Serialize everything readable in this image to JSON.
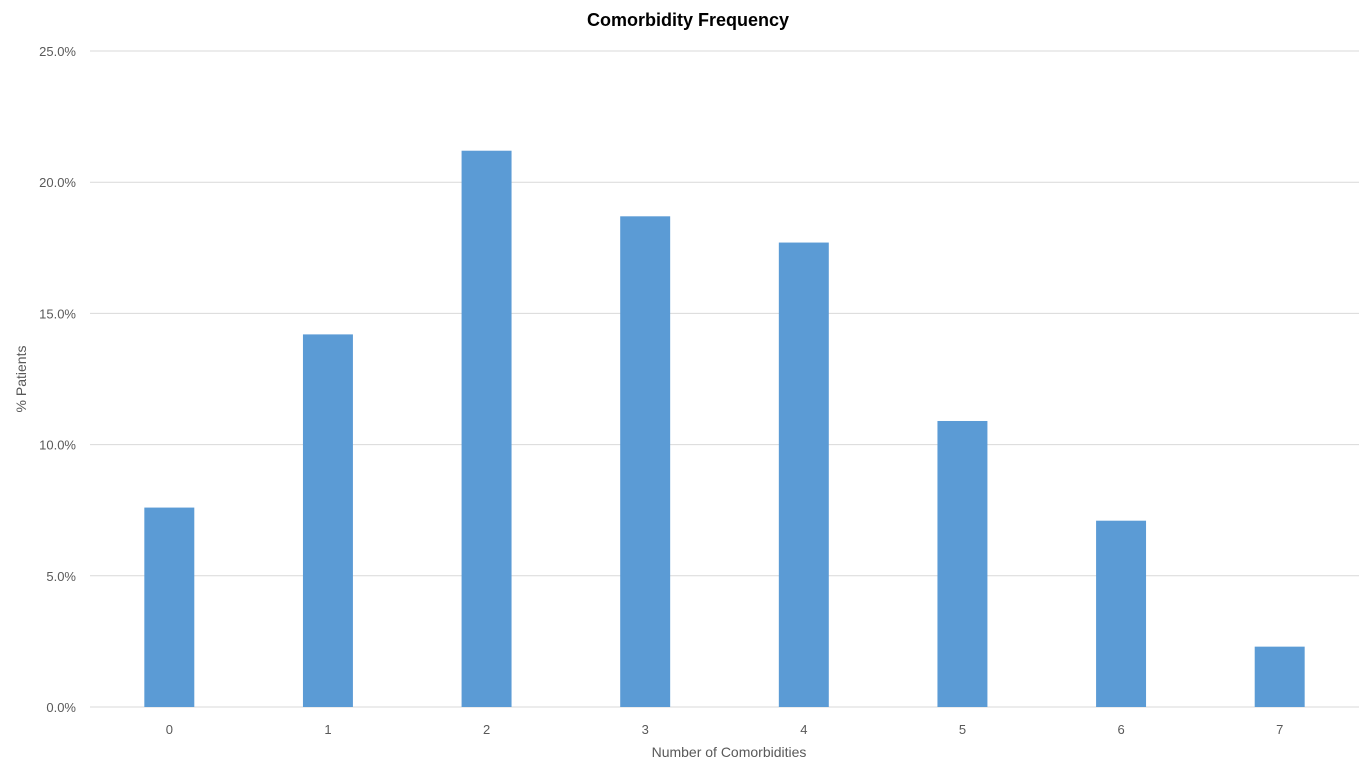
{
  "chart_data": {
    "type": "bar",
    "title": "Comorbidity Frequency",
    "xlabel": "Number of Comorbidities",
    "ylabel": "% Patients",
    "categories": [
      "0",
      "1",
      "2",
      "3",
      "4",
      "5",
      "6",
      "7"
    ],
    "values": [
      7.6,
      14.2,
      21.2,
      18.7,
      17.7,
      10.9,
      7.1,
      2.3
    ],
    "ylim": [
      0,
      25
    ],
    "yticks": [
      "0.0%",
      "5.0%",
      "10.0%",
      "15.0%",
      "20.0%",
      "25.0%"
    ],
    "grid": true,
    "legend": "none",
    "colors": {
      "bar": "#5b9bd5",
      "grid": "#d9d9d9",
      "text": "#595959"
    }
  }
}
